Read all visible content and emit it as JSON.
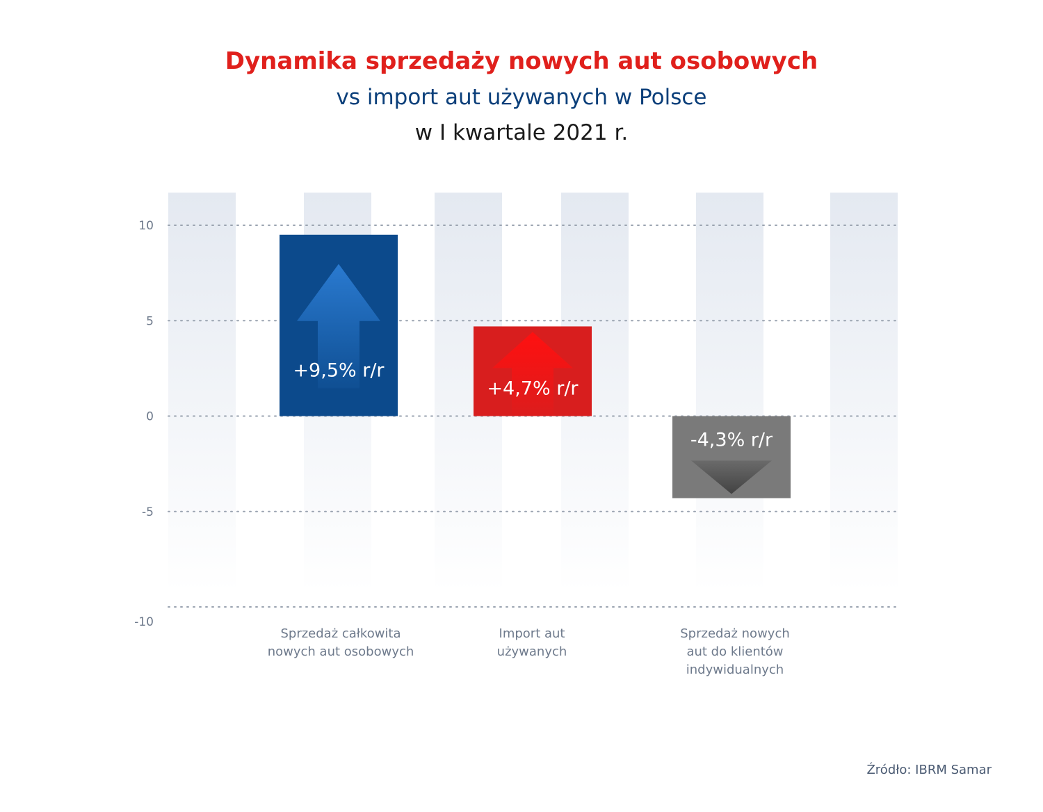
{
  "title": {
    "line1": "Dynamika sprzedaży nowych aut osobowych",
    "line2": "vs import aut używanych w Polsce",
    "line3": "w I kwartale 2021 r."
  },
  "chart_data": {
    "type": "bar",
    "categories": [
      "Sprzedaż całkowita\nnowych aut osobowych",
      "Import aut\nużywanych",
      "Sprzedaż nowych\naut do klientów\nindywidualnych"
    ],
    "values": [
      9.5,
      4.7,
      -4.3
    ],
    "data_labels": [
      "+9,5% r/r",
      "+4,7% r/r",
      "-4,3% r/r"
    ],
    "colors": [
      "#0c4a8c",
      "#d81e1e",
      "#7a7a7a"
    ],
    "arrow_colors": [
      "#2a7ad0",
      "#ff1010",
      "#3c3c3c"
    ],
    "yticks": [
      "10",
      "5",
      "0",
      "-5",
      "-10"
    ],
    "ylim": [
      -10,
      10
    ],
    "grid": true,
    "arrows": [
      "up",
      "up",
      "down"
    ]
  },
  "source": "Źródło: IBRM Samar"
}
